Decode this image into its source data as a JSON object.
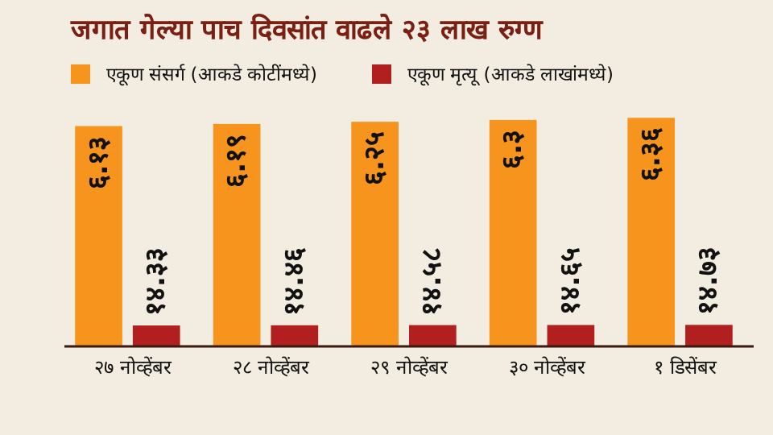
{
  "chart_data": {
    "type": "bar",
    "title": "जगात गेल्या पाच दिवसांत वाढले २३ लाख रुग्ण",
    "categories": [
      "२७ नोव्हेंबर",
      "२८ नोव्हेंबर",
      "२९ नोव्हेंबर",
      "३० नोव्हेंबर",
      "१ डिसेंबर"
    ],
    "series": [
      {
        "name": "एकूण संसर्ग (आकडे कोटींमध्ये)",
        "color": "#f7941d",
        "values": [
          6.13,
          6.19,
          6.25,
          6.3,
          6.36
        ],
        "value_labels": [
          "६.१३",
          "६.१९",
          "६.२५",
          "६.३",
          "६.३६"
        ]
      },
      {
        "name": "एकूण मृत्यू (आकडे लाखांमध्ये)",
        "color": "#b21f1f",
        "axis": "y2",
        "values": [
          14.33,
          14.46,
          14.58,
          14.65,
          14.73
        ],
        "value_labels": [
          "१४.३३",
          "१४.४६",
          "१४.५८",
          "१४.६५",
          "१४.७३"
        ]
      }
    ],
    "ylim": [
      0,
      6.5
    ],
    "y2lim": [
      0,
      160
    ],
    "tick_labels": "x",
    "legend": "top left"
  }
}
